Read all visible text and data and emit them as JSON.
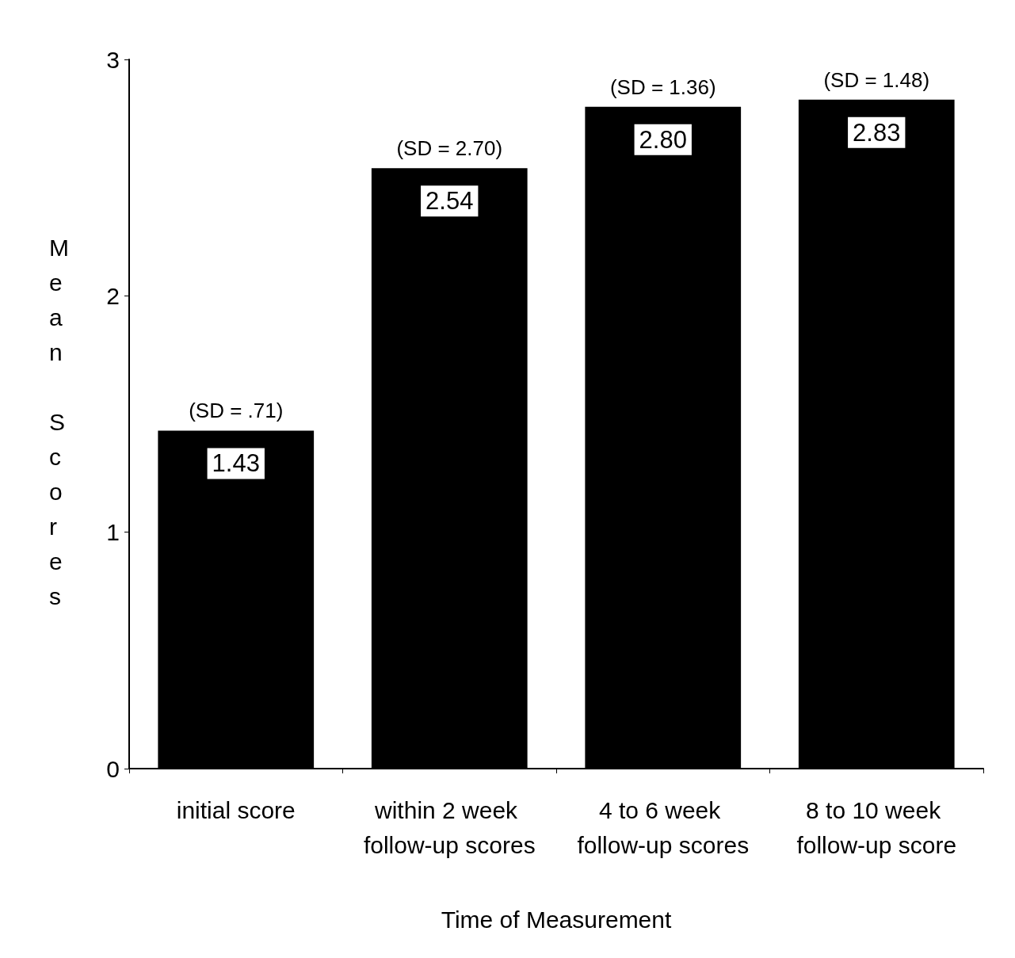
{
  "chart_data": {
    "type": "bar",
    "xlabel": "Time of Measurement",
    "ylabel": "Mean Scores",
    "categories": [
      "initial score",
      "within 2 week follow-up scores",
      "4 to 6 week follow-up scores",
      "8 to 10 week follow-up score"
    ],
    "values": [
      1.43,
      2.54,
      2.8,
      2.83
    ],
    "value_labels": [
      "1.43",
      "2.54",
      "2.80",
      "2.83"
    ],
    "color": "#000000",
    "ylim": [
      0,
      3
    ],
    "yticks": [
      0,
      1,
      2,
      3
    ],
    "grid": false,
    "annotations": [
      {
        "text": "(SD = .71)",
        "x": "initial score",
        "y": 1.43
      },
      {
        "text": "(SD = 2.70)",
        "x": "within 2 week follow-up scores",
        "y": 2.54
      },
      {
        "text": "(SD = 1.36)",
        "x": "4 to 6 week follow-up scores",
        "y": 2.8
      },
      {
        "text": "(SD = 1.48)",
        "x": "8 to 10 week follow-up score",
        "y": 2.83
      }
    ]
  }
}
